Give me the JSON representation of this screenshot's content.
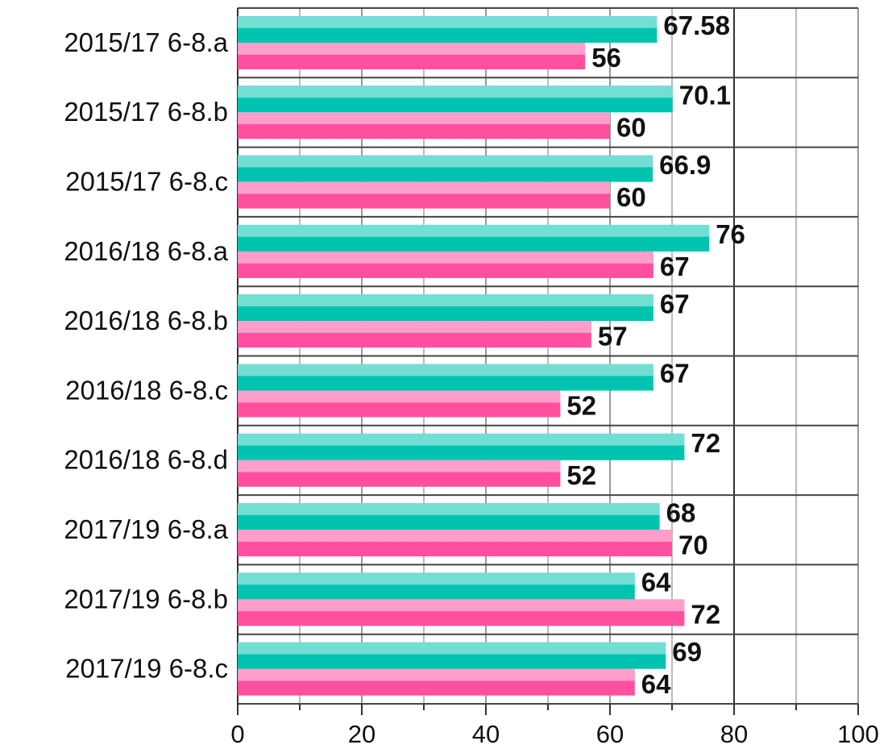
{
  "chart_data": {
    "type": "hbar",
    "categories": [
      "2015/17 6-8.a",
      "2015/17 6-8.b",
      "2015/17 6-8.c",
      "2016/18 6-8.a",
      "2016/18 6-8.b",
      "2016/18 6-8.c",
      "2016/18 6-8.d",
      "2017/19 6-8.a",
      "2017/19 6-8.b",
      "2017/19 6-8.c"
    ],
    "series": [
      {
        "color": "#00c4b0",
        "values": [
          67.58,
          70.1,
          66.9,
          76,
          67,
          67,
          72,
          68,
          64,
          69
        ]
      },
      {
        "color": "#ff4f9e",
        "values": [
          56,
          60,
          60,
          67,
          57,
          52,
          52,
          70,
          72,
          64
        ]
      }
    ],
    "xlim": [
      0,
      100
    ],
    "xticks": [
      0,
      20,
      40,
      60,
      80,
      100
    ],
    "xminor": [
      10,
      30,
      50,
      70,
      90
    ],
    "grid": true
  }
}
